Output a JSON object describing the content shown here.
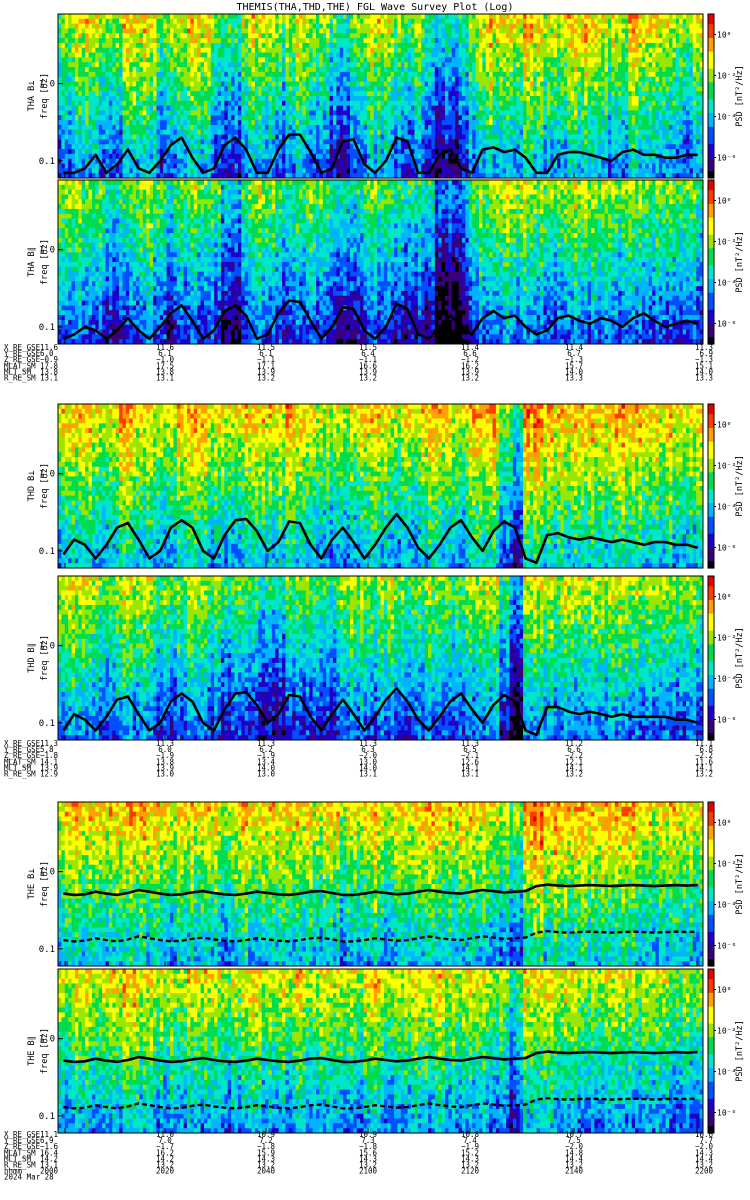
{
  "page_title": "THEMIS(THA,THD,THE) FGL Wave Survey Plot (Log)",
  "colors": {
    "colormap": [
      "#000000",
      "#3a0078",
      "#1e00c8",
      "#0050ff",
      "#00b4ff",
      "#00e6c8",
      "#00dc50",
      "#9ae600",
      "#ffff00",
      "#ffa000",
      "#ff3c00",
      "#e60000"
    ],
    "curve": "#000000",
    "frame": "#000000"
  },
  "chart_data": [
    {
      "type": "heatmap",
      "probe": "THA",
      "ylabel_top": "THA B⊥",
      "ylabel_unit": "freq [Hz]",
      "yscale": "log",
      "yticks": [
        "1.0",
        "0.1"
      ],
      "ylim": [
        0.06,
        8.0
      ],
      "colorbar_label": "PSD [nT²/Hz]",
      "colorbar_ticks": [
        "10⁰",
        "10⁻²",
        "10⁻⁴",
        "10⁻⁶"
      ],
      "zlim_log10": [
        -7,
        1
      ],
      "curves": "solid",
      "curve_level_hz": [
        0.07,
        0.07,
        0.08,
        0.12,
        0.07,
        0.09,
        0.14,
        0.08,
        0.07,
        0.1,
        0.16,
        0.2,
        0.11,
        0.07,
        0.08,
        0.16,
        0.2,
        0.14,
        0.07,
        0.07,
        0.14,
        0.22,
        0.22,
        0.13,
        0.07,
        0.08,
        0.18,
        0.19,
        0.09,
        0.07,
        0.1,
        0.2,
        0.18,
        0.07,
        0.07,
        0.12,
        0.14,
        0.08,
        0.07,
        0.14,
        0.15,
        0.13,
        0.14,
        0.11,
        0.07,
        0.07,
        0.12,
        0.13,
        0.13,
        0.12,
        0.11,
        0.1,
        0.13,
        0.14,
        0.12,
        0.12,
        0.11,
        0.11,
        0.12,
        0.12
      ],
      "intensity": [
        5,
        5.5,
        6,
        5.5,
        4.5,
        5,
        6,
        6.5,
        6,
        4,
        5,
        6,
        6.5,
        6,
        5,
        3.5,
        4,
        5.5,
        6,
        5.5,
        4.5,
        5,
        6,
        5.5,
        5,
        4,
        3,
        4.5,
        5.5,
        6,
        5.5,
        5,
        4.5,
        5,
        4,
        2.5,
        3,
        3.5,
        5,
        6,
        6.5,
        6.5,
        6,
        6.5,
        6,
        5.5,
        5.5,
        6,
        6.5,
        6,
        6,
        5.5,
        5.5,
        6.5,
        6.5,
        6,
        5.5,
        5.5,
        5,
        5.5
      ],
      "dropouts": []
    },
    {
      "type": "heatmap",
      "probe": "THA",
      "ylabel_top": "THA B∥",
      "ylabel_unit": "freq [Hz]",
      "yscale": "log",
      "yticks": [
        "1.0",
        "0.1"
      ],
      "ylim": [
        0.06,
        8.0
      ],
      "colorbar_label": "PSD [nT²/Hz]",
      "colorbar_ticks": [
        "10⁰",
        "10⁻²",
        "10⁻⁴",
        "10⁻⁶"
      ],
      "zlim_log10": [
        -7,
        1
      ],
      "curves": "solid",
      "curve_level_hz": [
        0.07,
        0.08,
        0.1,
        0.09,
        0.07,
        0.09,
        0.13,
        0.09,
        0.07,
        0.1,
        0.15,
        0.19,
        0.12,
        0.07,
        0.09,
        0.16,
        0.19,
        0.14,
        0.07,
        0.08,
        0.15,
        0.22,
        0.21,
        0.12,
        0.07,
        0.1,
        0.18,
        0.17,
        0.09,
        0.07,
        0.1,
        0.2,
        0.17,
        0.08,
        0.07,
        0.1,
        0.14,
        0.1,
        0.08,
        0.13,
        0.16,
        0.13,
        0.14,
        0.1,
        0.08,
        0.09,
        0.13,
        0.14,
        0.12,
        0.11,
        0.13,
        0.12,
        0.1,
        0.13,
        0.15,
        0.12,
        0.1,
        0.11,
        0.12,
        0.11
      ],
      "intensity": [
        4.5,
        5,
        5,
        4.5,
        3.5,
        3.5,
        4,
        4.5,
        5,
        4,
        3.5,
        4.5,
        5,
        4.5,
        4,
        3,
        3,
        4.5,
        5,
        4.5,
        4,
        3.5,
        4.5,
        5,
        4.5,
        3.5,
        3,
        3.5,
        4,
        4.5,
        4.5,
        4,
        3.5,
        3.5,
        3,
        1.5,
        1.5,
        2,
        4,
        5,
        5.5,
        5.5,
        5,
        5.5,
        5,
        4.5,
        4.5,
        5,
        5.5,
        5,
        5,
        5,
        4.5,
        5,
        5,
        5,
        4.5,
        4.5,
        4,
        4.5
      ],
      "dropouts": []
    },
    {
      "type": "heatmap",
      "probe": "THD",
      "ylabel_top": "THD B⊥",
      "ylabel_unit": "freq [Hz]",
      "yscale": "log",
      "yticks": [
        "1.0",
        "0.1"
      ],
      "ylim": [
        0.06,
        8.0
      ],
      "colorbar_label": "PSD [nT²/Hz]",
      "colorbar_ticks": [
        "10⁰",
        "10⁻²",
        "10⁻⁴",
        "10⁻⁶"
      ],
      "zlim_log10": [
        -7,
        1
      ],
      "curves": "solid",
      "curve_level_hz": [
        0.09,
        0.14,
        0.12,
        0.08,
        0.12,
        0.2,
        0.23,
        0.14,
        0.08,
        0.1,
        0.2,
        0.25,
        0.2,
        0.1,
        0.08,
        0.16,
        0.25,
        0.26,
        0.18,
        0.1,
        0.13,
        0.24,
        0.23,
        0.12,
        0.08,
        0.14,
        0.2,
        0.13,
        0.08,
        0.12,
        0.2,
        0.3,
        0.2,
        0.11,
        0.08,
        0.12,
        0.2,
        0.25,
        0.15,
        0.1,
        0.18,
        0.24,
        0.2,
        0.08,
        0.07,
        0.16,
        0.17,
        0.15,
        0.14,
        0.15,
        0.14,
        0.13,
        0.14,
        0.13,
        0.12,
        0.13,
        0.13,
        0.12,
        0.12,
        0.11
      ],
      "intensity": [
        6,
        6.5,
        6.5,
        6,
        5.5,
        6.5,
        7,
        6.5,
        6,
        5.5,
        6,
        7,
        7,
        6.5,
        6,
        5.5,
        6,
        6.5,
        6.5,
        6,
        6,
        6.5,
        6.5,
        6,
        5.5,
        5,
        5.5,
        6,
        6.5,
        6.5,
        6,
        5.5,
        5.5,
        6,
        6.5,
        6.5,
        6,
        5.5,
        6.5,
        7,
        7,
        5,
        4,
        7,
        7.5,
        7,
        6.5,
        6.5,
        7,
        7,
        6.5,
        6.5,
        7,
        6.5,
        6.5,
        6,
        6.5,
        6,
        6,
        6
      ],
      "dropouts": []
    },
    {
      "type": "heatmap",
      "probe": "THD",
      "ylabel_top": "THD B∥",
      "ylabel_unit": "freq [Hz]",
      "yscale": "log",
      "yticks": [
        "1.0",
        "0.1"
      ],
      "ylim": [
        0.06,
        8.0
      ],
      "colorbar_label": "PSD [nT²/Hz]",
      "colorbar_ticks": [
        "10⁰",
        "10⁻²",
        "10⁻⁴",
        "10⁻⁶"
      ],
      "zlim_log10": [
        -7,
        1
      ],
      "curves": "solid",
      "curve_level_hz": [
        0.08,
        0.13,
        0.11,
        0.08,
        0.12,
        0.2,
        0.22,
        0.13,
        0.08,
        0.1,
        0.19,
        0.24,
        0.19,
        0.1,
        0.08,
        0.15,
        0.24,
        0.25,
        0.17,
        0.1,
        0.13,
        0.23,
        0.22,
        0.12,
        0.08,
        0.13,
        0.2,
        0.13,
        0.08,
        0.12,
        0.2,
        0.28,
        0.19,
        0.11,
        0.08,
        0.12,
        0.19,
        0.24,
        0.15,
        0.1,
        0.17,
        0.23,
        0.19,
        0.08,
        0.07,
        0.16,
        0.16,
        0.14,
        0.13,
        0.14,
        0.13,
        0.12,
        0.13,
        0.12,
        0.12,
        0.12,
        0.12,
        0.11,
        0.11,
        0.1
      ],
      "intensity": [
        5.5,
        5.5,
        5.5,
        5,
        4.5,
        5,
        5.5,
        5.5,
        5,
        4.5,
        4.5,
        5,
        5.5,
        5,
        4.5,
        4,
        4,
        4,
        3.5,
        3,
        3.5,
        4,
        4.5,
        4.5,
        4,
        4,
        4.5,
        5,
        5.5,
        5,
        5,
        4.5,
        4.5,
        4.5,
        5,
        5,
        4.5,
        4.5,
        5,
        5.5,
        5.5,
        3.5,
        2,
        5.5,
        6,
        5.5,
        5,
        5.5,
        5.5,
        5.5,
        5,
        5.5,
        5.5,
        5,
        5,
        5,
        5,
        4.5,
        4.5,
        4.5
      ],
      "dropouts": []
    },
    {
      "type": "heatmap",
      "probe": "THE",
      "ylabel_top": "THE B⊥",
      "ylabel_unit": "freq [Hz]",
      "yscale": "log",
      "yticks": [
        "1.0",
        "0.1"
      ],
      "ylim": [
        0.06,
        8.0
      ],
      "colorbar_label": "PSD [nT²/Hz]",
      "colorbar_ticks": [
        "10⁰",
        "10⁻²",
        "10⁻⁴",
        "10⁻⁶"
      ],
      "zlim_log10": [
        -7,
        1
      ],
      "curves": "gyro",
      "curve_level_hz": [
        0.52,
        0.5,
        0.51,
        0.55,
        0.52,
        0.5,
        0.53,
        0.58,
        0.55,
        0.52,
        0.5,
        0.51,
        0.54,
        0.56,
        0.53,
        0.51,
        0.5,
        0.52,
        0.55,
        0.53,
        0.51,
        0.5,
        0.52,
        0.55,
        0.56,
        0.53,
        0.5,
        0.5,
        0.52,
        0.55,
        0.53,
        0.51,
        0.52,
        0.55,
        0.58,
        0.55,
        0.53,
        0.52,
        0.55,
        0.58,
        0.56,
        0.54,
        0.55,
        0.56,
        0.65,
        0.68,
        0.66,
        0.65,
        0.66,
        0.67,
        0.66,
        0.65,
        0.66,
        0.67,
        0.66,
        0.65,
        0.66,
        0.67,
        0.66,
        0.67
      ],
      "intensity": [
        6,
        6.5,
        6.5,
        6,
        6,
        6.5,
        7,
        6.5,
        6.5,
        6,
        6,
        6.5,
        6.5,
        6,
        6,
        5.5,
        6,
        6.5,
        6.5,
        6,
        6,
        6,
        6.5,
        6,
        6,
        6,
        5.5,
        6,
        6,
        6.5,
        6,
        6,
        6,
        6.5,
        6.5,
        6.5,
        6,
        6,
        6.5,
        6.5,
        6,
        5.5,
        4.5,
        7,
        7.5,
        7,
        7,
        6.5,
        6.5,
        6.5,
        6.5,
        6.5,
        6.5,
        6.5,
        6,
        6,
        6,
        6,
        6,
        6
      ],
      "dropouts": []
    },
    {
      "type": "heatmap",
      "probe": "THE",
      "ylabel_top": "THE B∥",
      "ylabel_unit": "freq [Hz]",
      "yscale": "log",
      "yticks": [
        "1.0",
        "0.1"
      ],
      "ylim": [
        0.06,
        8.0
      ],
      "colorbar_label": "PSD [nT²/Hz]",
      "colorbar_ticks": [
        "10⁰",
        "10⁻²",
        "10⁻⁴",
        "10⁻⁶"
      ],
      "zlim_log10": [
        -7,
        1
      ],
      "curves": "gyro",
      "curve_level_hz": [
        0.52,
        0.5,
        0.51,
        0.55,
        0.52,
        0.5,
        0.53,
        0.58,
        0.55,
        0.52,
        0.5,
        0.51,
        0.54,
        0.56,
        0.53,
        0.51,
        0.5,
        0.52,
        0.55,
        0.53,
        0.51,
        0.5,
        0.52,
        0.55,
        0.56,
        0.53,
        0.5,
        0.5,
        0.52,
        0.55,
        0.53,
        0.51,
        0.52,
        0.55,
        0.58,
        0.55,
        0.53,
        0.52,
        0.55,
        0.58,
        0.56,
        0.54,
        0.55,
        0.56,
        0.65,
        0.68,
        0.66,
        0.65,
        0.66,
        0.67,
        0.66,
        0.65,
        0.66,
        0.67,
        0.66,
        0.65,
        0.66,
        0.67,
        0.66,
        0.67
      ],
      "intensity": [
        5.5,
        6,
        6,
        5.5,
        5.5,
        6,
        6.5,
        6,
        6,
        5.5,
        5.5,
        6,
        6,
        5.5,
        5.5,
        5,
        5.5,
        6,
        6,
        5.5,
        5.5,
        5.5,
        6,
        5.5,
        5.5,
        5.5,
        5,
        5.5,
        5.5,
        6,
        5.5,
        5.5,
        5.5,
        6,
        6,
        6,
        5.5,
        5.5,
        6,
        6,
        5.5,
        5,
        4,
        6.5,
        6.5,
        6,
        6,
        6,
        5.5,
        5.5,
        5.5,
        5.5,
        5.5,
        5.5,
        5,
        5,
        5,
        5,
        5,
        5
      ],
      "dropouts": []
    }
  ],
  "ephemeris": [
    {
      "rows": [
        {
          "label": "X_RE_GSE",
          "values": [
            "11.6",
            "11.6",
            "11.5",
            "11.5",
            "11.4",
            "11.4",
            "11.3"
          ]
        },
        {
          "label": "Y_RE_GSE",
          "values": [
            "6.0",
            "6.1",
            "6.1",
            "6.4",
            "6.6",
            "6.7",
            "6.9"
          ]
        },
        {
          "label": "Z_RE_GSE",
          "values": [
            "−0.9",
            "−1.0",
            "−1.1",
            "−1.1",
            "−1.2",
            "−1.3",
            "−1.3"
          ]
        },
        {
          "label": "MLAT_SM",
          "values": [
            "17.8",
            "17.5",
            "17.1",
            "16.6",
            "16.2",
            "15.7",
            "15.1"
          ]
        },
        {
          "label": "MLT_SM",
          "values": [
            "13.8",
            "13.8",
            "13.9",
            "13.9",
            "13.9",
            "14.0",
            "14.0"
          ]
        },
        {
          "label": "R_RE_SM",
          "values": [
            "13.1",
            "13.1",
            "13.2",
            "13.2",
            "13.2",
            "13.3",
            "13.3"
          ]
        }
      ]
    },
    {
      "rows": [
        {
          "label": "X_RE_GSE",
          "values": [
            "11.3",
            "11.3",
            "11.3",
            "11.3",
            "11.3",
            "11.2",
            "11.1"
          ]
        },
        {
          "label": "Y_RE_GSE",
          "values": [
            "5.8",
            "6.0",
            "6.2",
            "6.3",
            "6.5",
            "6.6",
            "6.8"
          ]
        },
        {
          "label": "Z_RE_GSE",
          "values": [
            "−1.8",
            "−1.9",
            "−1.9",
            "−2.0",
            "−2.1",
            "−2.2",
            "−2.2"
          ]
        },
        {
          "label": "MLAT_SM",
          "values": [
            "14.1",
            "13.8",
            "13.4",
            "13.0",
            "12.6",
            "12.1",
            "11.6"
          ]
        },
        {
          "label": "MLT_SM",
          "values": [
            "13.9",
            "13.9",
            "14.0",
            "14.0",
            "14.1",
            "14.1",
            "14.1"
          ]
        },
        {
          "label": "R_RE_SM",
          "values": [
            "12.9",
            "13.0",
            "13.0",
            "13.1",
            "13.1",
            "13.2",
            "13.2"
          ]
        }
      ]
    },
    {
      "rows": [
        {
          "label": "X_RE_GSE",
          "values": [
            "11.1",
            "11.0",
            "10.9",
            "10.9",
            "10.8",
            "10.7",
            "10.6"
          ]
        },
        {
          "label": "Y_RE_GSE",
          "values": [
            "6.9",
            "7.0",
            "7.2",
            "7.3",
            "7.4",
            "7.5",
            "7.7"
          ]
        },
        {
          "label": "Z_RE_GSE",
          "values": [
            "−1.6",
            "−1.7",
            "−1.8",
            "−1.8",
            "−1.9",
            "−2.0",
            "−2.0"
          ]
        },
        {
          "label": "MLAT_SM",
          "values": [
            "16.4",
            "16.2",
            "15.9",
            "15.6",
            "15.2",
            "14.8",
            "14.3"
          ]
        },
        {
          "label": "MLT_SM",
          "values": [
            "14.2",
            "14.2",
            "14.3",
            "14.3",
            "14.3",
            "14.4",
            "14.4"
          ]
        },
        {
          "label": "R_RE_SM",
          "values": [
            "13.1",
            "13.2",
            "13.2",
            "13.2",
            "13.2",
            "13.2",
            "13.2"
          ]
        }
      ],
      "time_row": {
        "label": "hhmm",
        "values": [
          "2000",
          "2020",
          "2040",
          "2100",
          "2120",
          "2140",
          "2200"
        ]
      },
      "date_label": "2024 Mar 28"
    }
  ]
}
